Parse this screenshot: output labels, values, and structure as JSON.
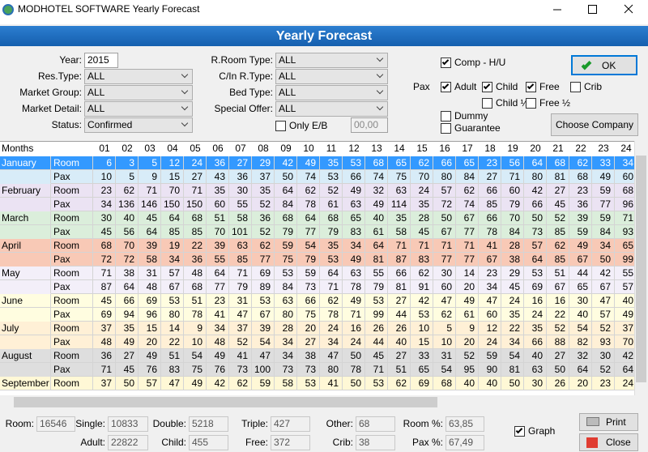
{
  "window": {
    "title": "MODHOTEL SOFTWARE Yearly Forecast"
  },
  "header": {
    "title": "Yearly Forecast"
  },
  "form": {
    "left": [
      {
        "label": "Year:",
        "value": "2015"
      },
      {
        "label": "Res.Type:",
        "value": "ALL"
      },
      {
        "label": "Market Group:",
        "value": "ALL"
      },
      {
        "label": "Market Detail:",
        "value": "ALL"
      },
      {
        "label": "Status:",
        "value": "Confirmed"
      }
    ],
    "middle": [
      {
        "label": "R.Room Type:",
        "value": "ALL"
      },
      {
        "label": "C/In R.Type:",
        "value": "ALL"
      },
      {
        "label": "Bed Type:",
        "value": "ALL"
      },
      {
        "label": "Special Offer:",
        "value": "ALL"
      }
    ],
    "only_eb": {
      "label": "Only E/B",
      "checked": false,
      "value": "00,00"
    },
    "pax_label": "Pax",
    "checkboxes": [
      {
        "label": "Comp - H/U",
        "checked": true
      },
      {
        "label": "Adult",
        "checked": true
      },
      {
        "label": "Child",
        "checked": true
      },
      {
        "label": "Free",
        "checked": true
      },
      {
        "label": "Crib",
        "checked": false
      },
      {
        "label": "Child ½",
        "checked": false
      },
      {
        "label": "Free ½",
        "checked": false
      },
      {
        "label": "Dummy",
        "checked": false
      },
      {
        "label": "Guarantee",
        "checked": false
      }
    ],
    "ok": "OK",
    "choose_company": "Choose Company"
  },
  "grid": {
    "columns": [
      "Months",
      "01",
      "02",
      "03",
      "04",
      "05",
      "06",
      "07",
      "08",
      "09",
      "10",
      "11",
      "12",
      "13",
      "14",
      "15",
      "16",
      "17",
      "18",
      "19",
      "20",
      "21",
      "22",
      "23",
      "24"
    ],
    "rows": [
      {
        "month": "January",
        "kind": "Room",
        "color": "#3399ff",
        "selected": true,
        "values": [
          6,
          3,
          5,
          12,
          24,
          36,
          27,
          29,
          42,
          49,
          35,
          53,
          68,
          65,
          62,
          66,
          65,
          23,
          56,
          64,
          68,
          62,
          33,
          34
        ]
      },
      {
        "kind": "Pax",
        "color": "#d8ecf8",
        "values": [
          10,
          5,
          9,
          15,
          27,
          43,
          36,
          37,
          50,
          74,
          53,
          66,
          74,
          75,
          70,
          80,
          84,
          27,
          71,
          80,
          81,
          68,
          49,
          60
        ]
      },
      {
        "month": "February",
        "kind": "Room",
        "color": "#ebe3f3",
        "values": [
          23,
          62,
          71,
          70,
          71,
          35,
          30,
          35,
          64,
          62,
          52,
          49,
          32,
          63,
          24,
          57,
          62,
          66,
          60,
          42,
          27,
          23,
          59,
          68
        ]
      },
      {
        "kind": "Pax",
        "color": "#ebe3f3",
        "values": [
          34,
          136,
          146,
          150,
          150,
          60,
          55,
          52,
          84,
          78,
          61,
          63,
          49,
          114,
          35,
          72,
          74,
          85,
          79,
          66,
          45,
          36,
          77,
          96
        ]
      },
      {
        "month": "March",
        "kind": "Room",
        "color": "#dbeedb",
        "values": [
          30,
          40,
          45,
          64,
          68,
          51,
          58,
          36,
          68,
          64,
          68,
          65,
          40,
          35,
          28,
          50,
          67,
          66,
          70,
          50,
          52,
          39,
          59,
          71
        ]
      },
      {
        "kind": "Pax",
        "color": "#dbeedb",
        "values": [
          45,
          56,
          64,
          85,
          85,
          70,
          101,
          52,
          79,
          77,
          79,
          83,
          61,
          58,
          45,
          67,
          77,
          78,
          84,
          73,
          85,
          59,
          84,
          93
        ]
      },
      {
        "month": "April",
        "kind": "Room",
        "color": "#f8c9b6",
        "values": [
          68,
          70,
          39,
          19,
          22,
          39,
          63,
          62,
          59,
          54,
          35,
          34,
          64,
          71,
          71,
          71,
          71,
          41,
          28,
          57,
          62,
          49,
          34,
          65
        ]
      },
      {
        "kind": "Pax",
        "color": "#f8c9b6",
        "values": [
          72,
          72,
          58,
          34,
          36,
          55,
          85,
          77,
          75,
          79,
          53,
          49,
          81,
          87,
          83,
          77,
          77,
          67,
          38,
          64,
          85,
          67,
          50,
          99
        ]
      },
      {
        "month": "May",
        "kind": "Room",
        "color": "#f3eff9",
        "values": [
          71,
          38,
          31,
          57,
          48,
          64,
          71,
          69,
          53,
          59,
          64,
          63,
          55,
          66,
          62,
          30,
          14,
          23,
          29,
          53,
          51,
          44,
          42,
          55
        ]
      },
      {
        "kind": "Pax",
        "color": "#f3eff9",
        "values": [
          87,
          64,
          48,
          67,
          68,
          77,
          79,
          89,
          84,
          73,
          71,
          78,
          79,
          81,
          91,
          60,
          20,
          34,
          45,
          69,
          67,
          65,
          67,
          57
        ]
      },
      {
        "month": "June",
        "kind": "Room",
        "color": "#fffde0",
        "values": [
          45,
          66,
          69,
          53,
          51,
          23,
          31,
          53,
          63,
          66,
          62,
          49,
          53,
          27,
          42,
          47,
          49,
          47,
          24,
          16,
          16,
          30,
          47,
          40
        ]
      },
      {
        "kind": "Pax",
        "color": "#fffde0",
        "values": [
          69,
          94,
          96,
          80,
          78,
          41,
          47,
          67,
          80,
          75,
          78,
          71,
          99,
          44,
          53,
          62,
          61,
          60,
          35,
          24,
          22,
          40,
          57,
          49
        ]
      },
      {
        "month": "July",
        "kind": "Room",
        "color": "#fff0d6",
        "values": [
          37,
          35,
          15,
          14,
          9,
          34,
          37,
          39,
          28,
          20,
          24,
          16,
          26,
          26,
          10,
          5,
          9,
          12,
          22,
          35,
          52,
          54,
          52,
          37
        ]
      },
      {
        "kind": "Pax",
        "color": "#fff0d6",
        "values": [
          48,
          49,
          20,
          22,
          10,
          48,
          52,
          54,
          34,
          27,
          34,
          24,
          44,
          40,
          15,
          10,
          20,
          24,
          34,
          66,
          88,
          82,
          93,
          70
        ]
      },
      {
        "month": "August",
        "kind": "Room",
        "color": "#dedede",
        "values": [
          36,
          27,
          49,
          51,
          54,
          49,
          41,
          47,
          34,
          38,
          47,
          50,
          45,
          27,
          33,
          31,
          52,
          59,
          54,
          40,
          27,
          32,
          30,
          42
        ]
      },
      {
        "kind": "Pax",
        "color": "#dedede",
        "values": [
          71,
          45,
          76,
          83,
          75,
          76,
          73,
          100,
          73,
          73,
          80,
          78,
          71,
          51,
          65,
          54,
          95,
          90,
          81,
          63,
          50,
          64,
          52,
          64
        ]
      },
      {
        "month": "September",
        "kind": "Room",
        "color": "#fff8d6",
        "values": [
          37,
          50,
          57,
          47,
          49,
          42,
          62,
          59,
          58,
          53,
          41,
          50,
          53,
          62,
          69,
          68,
          40,
          40,
          50,
          30,
          26,
          20,
          23,
          24
        ]
      }
    ]
  },
  "totals": {
    "row1": [
      {
        "label": "Room:",
        "value": "16546"
      },
      {
        "label": "Single:",
        "value": "10833"
      },
      {
        "label": "Double:",
        "value": "5218"
      },
      {
        "label": "Triple:",
        "value": "427"
      },
      {
        "label": "Other:",
        "value": "68"
      },
      {
        "label": "Room %:",
        "value": "63,85"
      }
    ],
    "row2": [
      {
        "label": "Adult:",
        "value": "22822"
      },
      {
        "label": "Child:",
        "value": "455"
      },
      {
        "label": "Free:",
        "value": "372"
      },
      {
        "label": "Crib:",
        "value": "38"
      },
      {
        "label": "Pax %:",
        "value": "67,49"
      }
    ],
    "graph": {
      "label": "Graph",
      "checked": true
    },
    "print": "Print",
    "close": "Close"
  }
}
